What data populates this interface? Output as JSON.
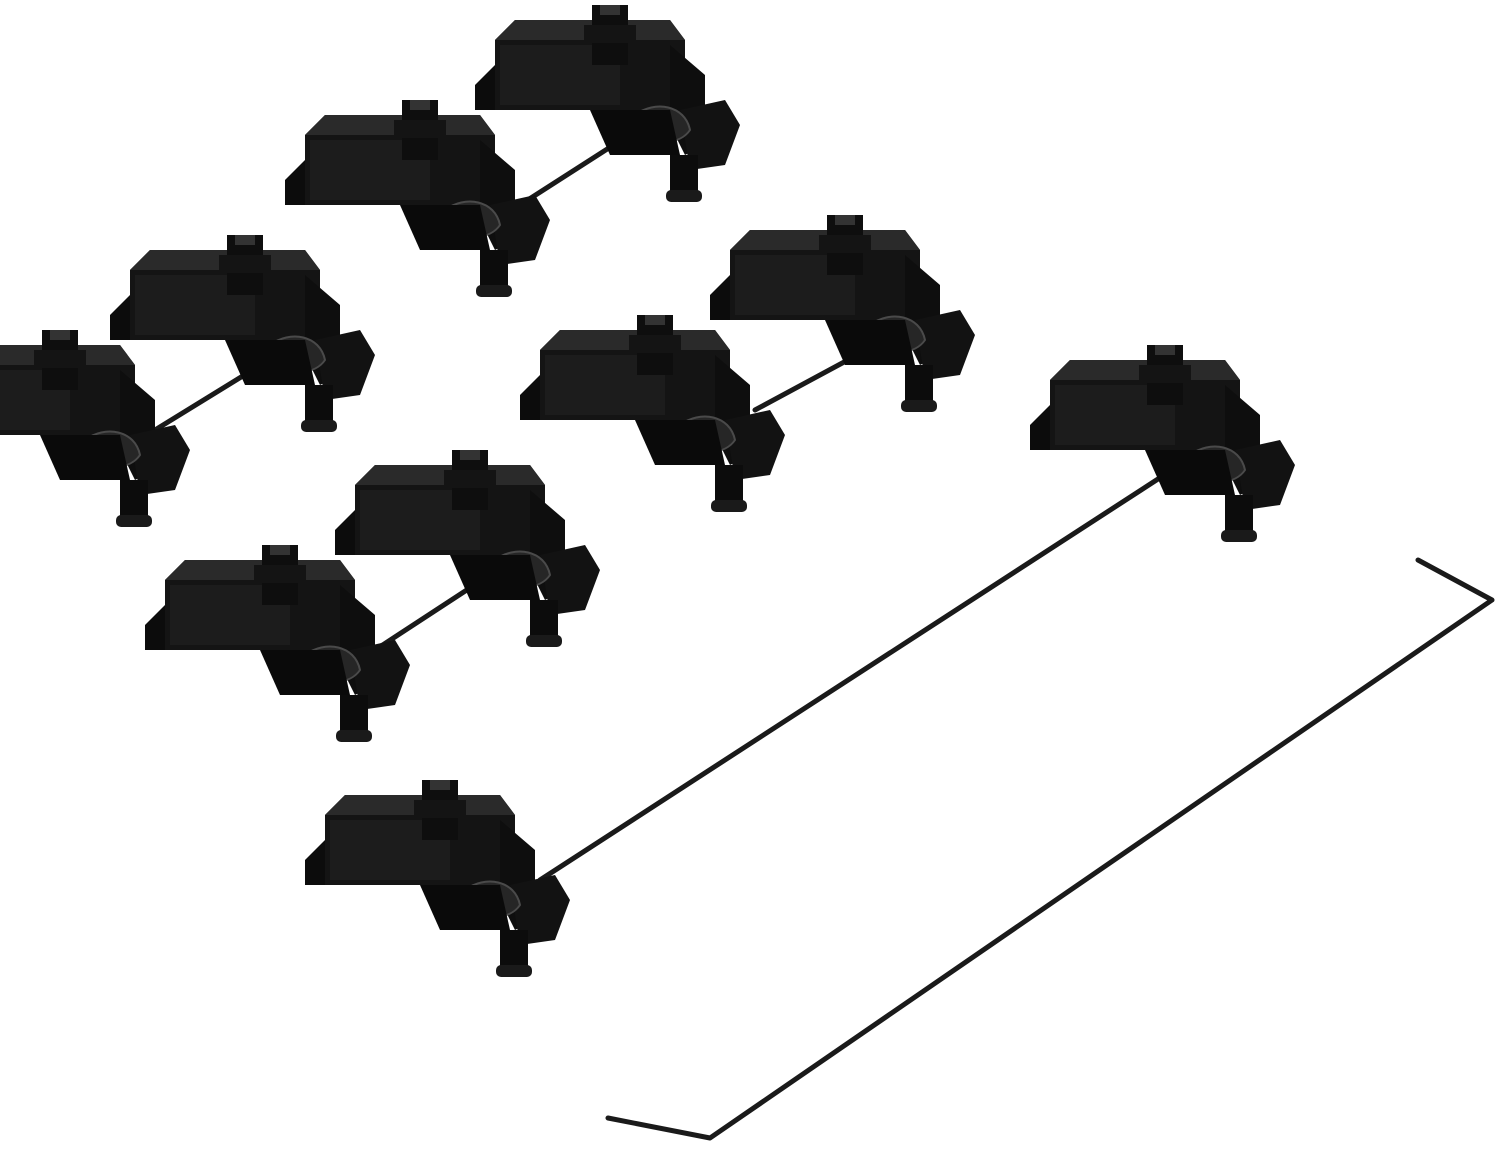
{
  "scene": {
    "background": "#ffffff",
    "subject": "keyboard-stabilizer-set",
    "colors": {
      "plastic_dark": "#0c0c0c",
      "plastic_mid": "#1e1e1e",
      "plastic_highlight": "#3a3a3a",
      "wire": "#1a1a1a"
    },
    "counts": {
      "stabilizer_pairs": 5,
      "long_stabilizer_pairs": 1,
      "loose_wires": 1
    }
  }
}
